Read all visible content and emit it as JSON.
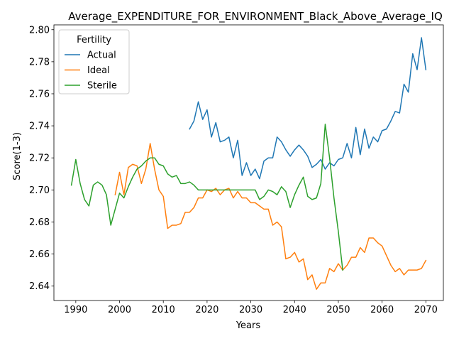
{
  "chart_data": {
    "type": "line",
    "title": "Average_EXPENDITURE_FOR_ENVIRONMENT_Black_Above_Average_IQ",
    "xlabel": "Years",
    "ylabel": "Score(1-3)",
    "xlim": [
      1985,
      2074
    ],
    "ylim": [
      2.631,
      2.803
    ],
    "xticks": [
      1990,
      2000,
      2010,
      2020,
      2030,
      2040,
      2050,
      2060,
      2070
    ],
    "yticks": [
      2.64,
      2.66,
      2.68,
      2.7,
      2.72,
      2.74,
      2.76,
      2.78,
      2.8
    ],
    "grid": false,
    "legend": {
      "title": "Fertility",
      "position": "top-left"
    },
    "series": [
      {
        "name": "Actual",
        "color": "#1f77b4",
        "x": [
          2016,
          2017,
          2018,
          2019,
          2020,
          2021,
          2022,
          2023,
          2024,
          2025,
          2026,
          2027,
          2028,
          2029,
          2030,
          2031,
          2032,
          2033,
          2034,
          2035,
          2036,
          2037,
          2038,
          2039,
          2040,
          2041,
          2042,
          2043,
          2044,
          2045,
          2046,
          2047,
          2048,
          2049,
          2050,
          2051,
          2052,
          2053,
          2054,
          2055,
          2056,
          2057,
          2058,
          2059,
          2060,
          2061,
          2062,
          2063,
          2064,
          2065,
          2066,
          2067,
          2068,
          2069,
          2070
        ],
        "y": [
          2.738,
          2.743,
          2.755,
          2.744,
          2.75,
          2.733,
          2.742,
          2.73,
          2.731,
          2.733,
          2.72,
          2.731,
          2.709,
          2.717,
          2.709,
          2.713,
          2.707,
          2.718,
          2.72,
          2.72,
          2.733,
          2.73,
          2.725,
          2.721,
          2.725,
          2.728,
          2.725,
          2.721,
          2.714,
          2.716,
          2.719,
          2.713,
          2.717,
          2.715,
          2.719,
          2.72,
          2.729,
          2.72,
          2.739,
          2.722,
          2.738,
          2.726,
          2.733,
          2.73,
          2.737,
          2.738,
          2.743,
          2.749,
          2.748,
          2.766,
          2.761,
          2.785,
          2.775,
          2.795,
          2.775
        ]
      },
      {
        "name": "Ideal",
        "color": "#ff7f0e",
        "x": [
          1999,
          2000,
          2001,
          2002,
          2003,
          2004,
          2005,
          2006,
          2007,
          2008,
          2009,
          2010,
          2011,
          2012,
          2013,
          2014,
          2015,
          2016,
          2017,
          2018,
          2019,
          2020,
          2021,
          2022,
          2023,
          2024,
          2025,
          2026,
          2027,
          2028,
          2029,
          2030,
          2031,
          2032,
          2033,
          2034,
          2035,
          2036,
          2037,
          2038,
          2039,
          2040,
          2041,
          2042,
          2043,
          2044,
          2045,
          2046,
          2047,
          2048,
          2049,
          2050,
          2051,
          2052,
          2053,
          2054,
          2055,
          2056,
          2057,
          2058,
          2059,
          2060,
          2061,
          2062,
          2063,
          2064,
          2065,
          2066,
          2067,
          2068,
          2069,
          2070
        ],
        "y": [
          2.697,
          2.711,
          2.697,
          2.714,
          2.716,
          2.715,
          2.704,
          2.713,
          2.729,
          2.713,
          2.7,
          2.696,
          2.676,
          2.678,
          2.678,
          2.679,
          2.686,
          2.686,
          2.689,
          2.695,
          2.695,
          2.7,
          2.699,
          2.701,
          2.697,
          2.7,
          2.701,
          2.695,
          2.699,
          2.695,
          2.695,
          2.692,
          2.692,
          2.69,
          2.688,
          2.688,
          2.678,
          2.68,
          2.677,
          2.657,
          2.658,
          2.661,
          2.655,
          2.657,
          2.644,
          2.647,
          2.638,
          2.642,
          2.642,
          2.651,
          2.649,
          2.654,
          2.65,
          2.653,
          2.658,
          2.658,
          2.664,
          2.661,
          2.67,
          2.67,
          2.667,
          2.665,
          2.659,
          2.653,
          2.649,
          2.651,
          2.647,
          2.65,
          2.65,
          2.65,
          2.651,
          2.656
        ]
      },
      {
        "name": "Sterile",
        "color": "#2ca02c",
        "x": [
          1989,
          1990,
          1991,
          1992,
          1993,
          1994,
          1995,
          1996,
          1997,
          1998,
          1999,
          2000,
          2001,
          2002,
          2003,
          2004,
          2005,
          2006,
          2007,
          2008,
          2009,
          2010,
          2011,
          2012,
          2013,
          2014,
          2015,
          2016,
          2017,
          2018,
          2019,
          2020,
          2021,
          2022,
          2023,
          2024,
          2025,
          2026,
          2027,
          2028,
          2029,
          2030,
          2031,
          2032,
          2033,
          2034,
          2035,
          2036,
          2037,
          2038,
          2039,
          2040,
          2041,
          2042,
          2043,
          2044,
          2045,
          2046,
          2047,
          2048,
          2049,
          2050,
          2051
        ],
        "y": [
          2.703,
          2.719,
          2.704,
          2.694,
          2.69,
          2.703,
          2.705,
          2.703,
          2.697,
          2.678,
          2.688,
          2.698,
          2.695,
          2.702,
          2.708,
          2.713,
          2.715,
          2.718,
          2.72,
          2.72,
          2.716,
          2.715,
          2.71,
          2.708,
          2.709,
          2.704,
          2.704,
          2.705,
          2.703,
          2.7,
          2.7,
          2.7,
          2.7,
          2.7,
          2.7,
          2.7,
          2.7,
          2.7,
          2.7,
          2.7,
          2.7,
          2.7,
          2.7,
          2.694,
          2.696,
          2.7,
          2.699,
          2.697,
          2.702,
          2.699,
          2.689,
          2.697,
          2.703,
          2.708,
          2.696,
          2.694,
          2.695,
          2.704,
          2.741,
          2.72,
          2.695,
          2.674,
          2.65
        ]
      }
    ]
  }
}
